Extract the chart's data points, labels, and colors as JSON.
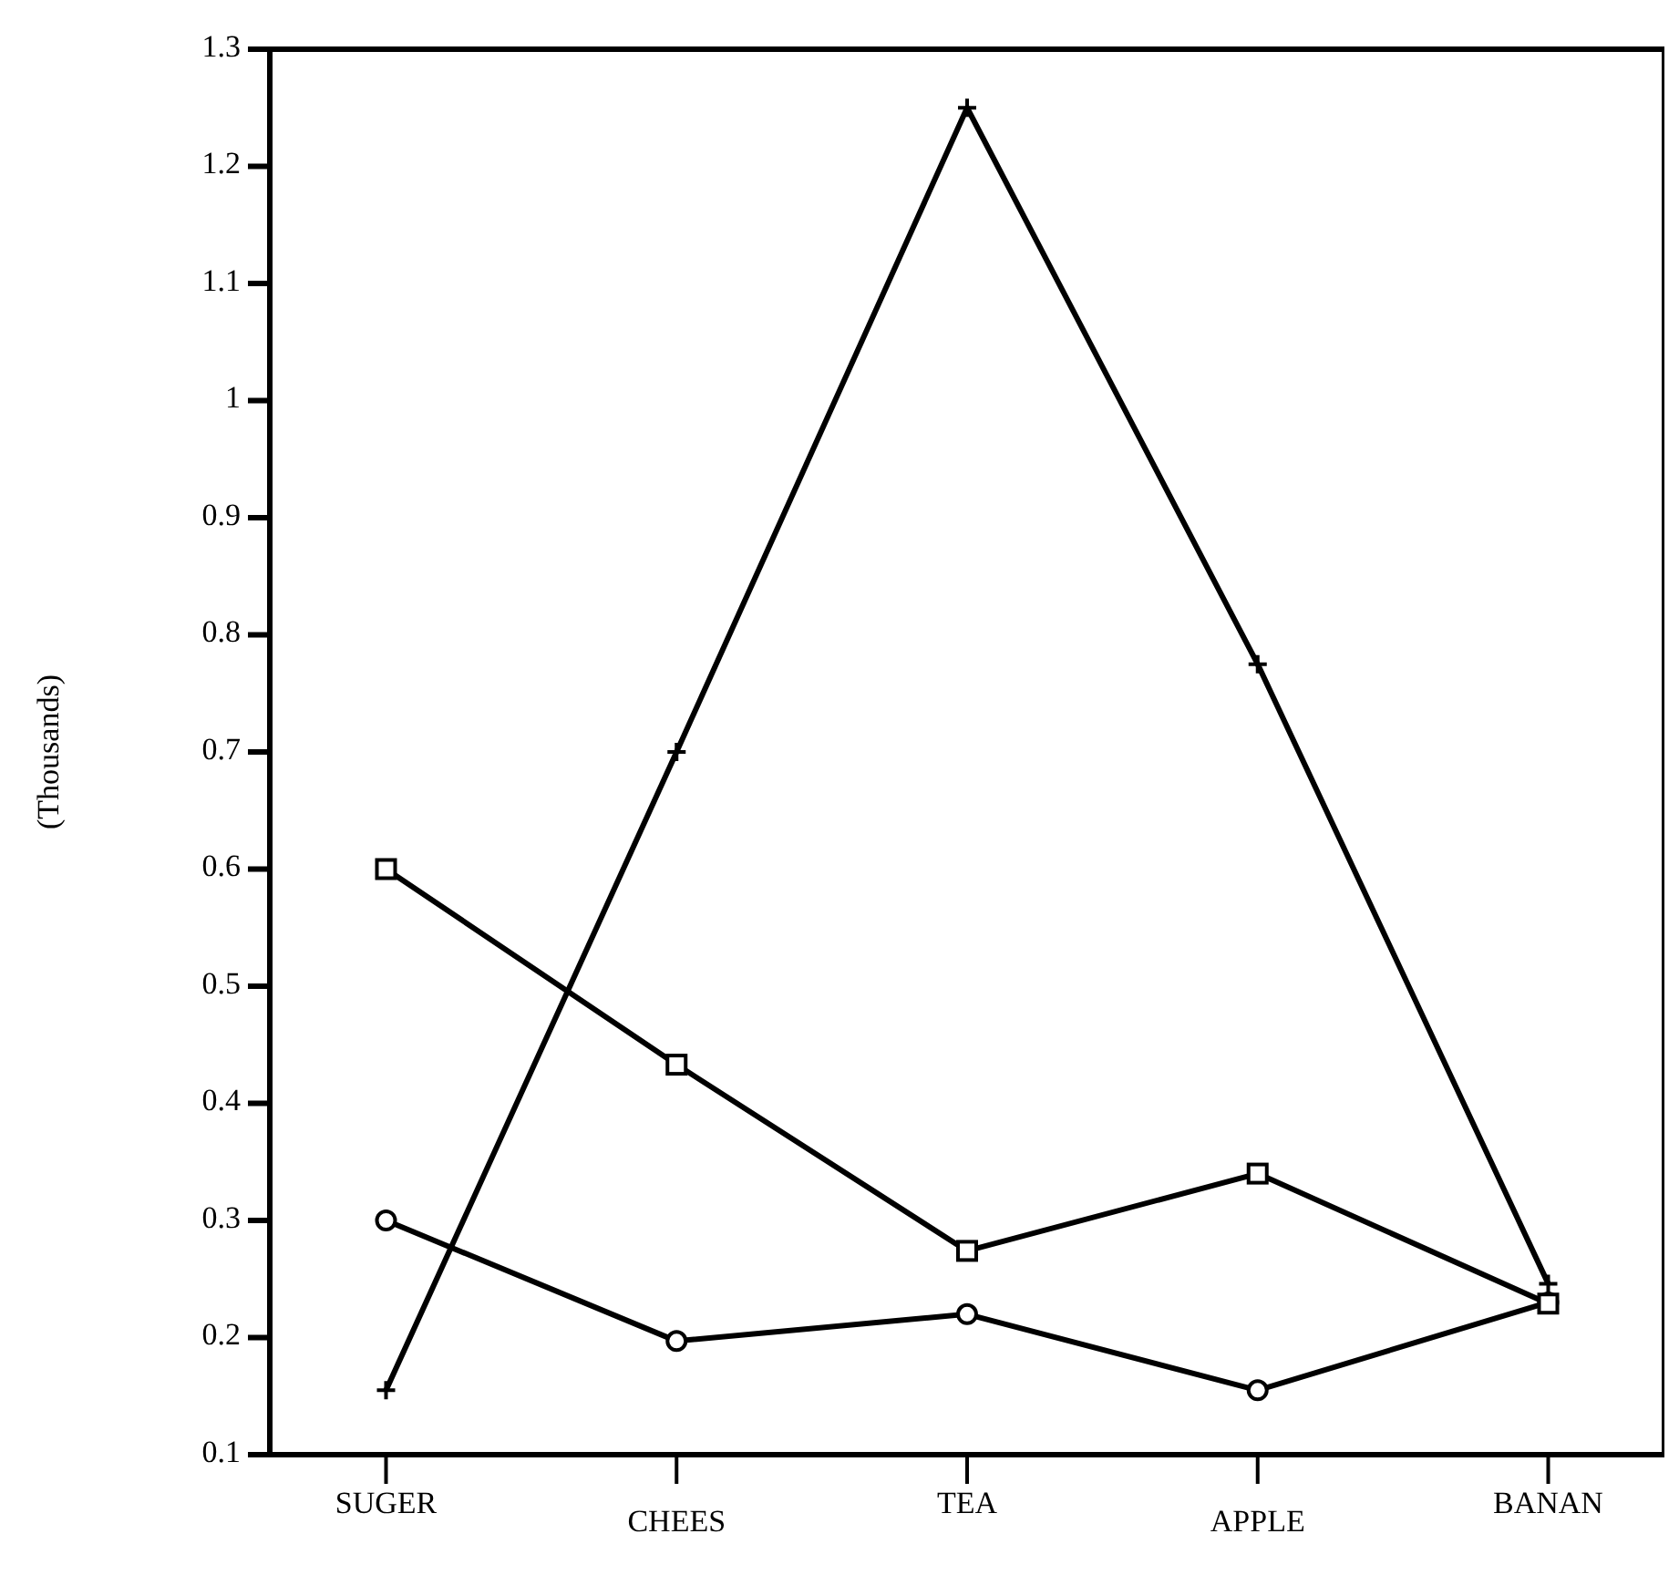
{
  "chart_data": {
    "type": "line",
    "ylabel": "(Thousands)",
    "categories": [
      "SUGER",
      "CHEES",
      "TEA",
      "APPLE",
      "BANAN"
    ],
    "ylim": [
      0.1,
      1.3
    ],
    "yticks": [
      0.1,
      0.2,
      0.3,
      0.4,
      0.5,
      0.6,
      0.7,
      0.8,
      0.9,
      1,
      1.1,
      1.2,
      1.3
    ],
    "grid": false,
    "line_style": "solid",
    "series": [
      {
        "color": "#000000",
        "marker": "cross",
        "values": [
          0.155,
          0.7,
          1.25,
          0.775,
          0.246
        ]
      },
      {
        "color": "#000000",
        "marker": "square",
        "values": [
          0.6,
          0.433,
          0.274,
          0.34,
          0.229
        ]
      },
      {
        "color": "#000000",
        "marker": "circle",
        "values": [
          0.3,
          0.197,
          0.22,
          0.155,
          0.23
        ]
      }
    ]
  }
}
